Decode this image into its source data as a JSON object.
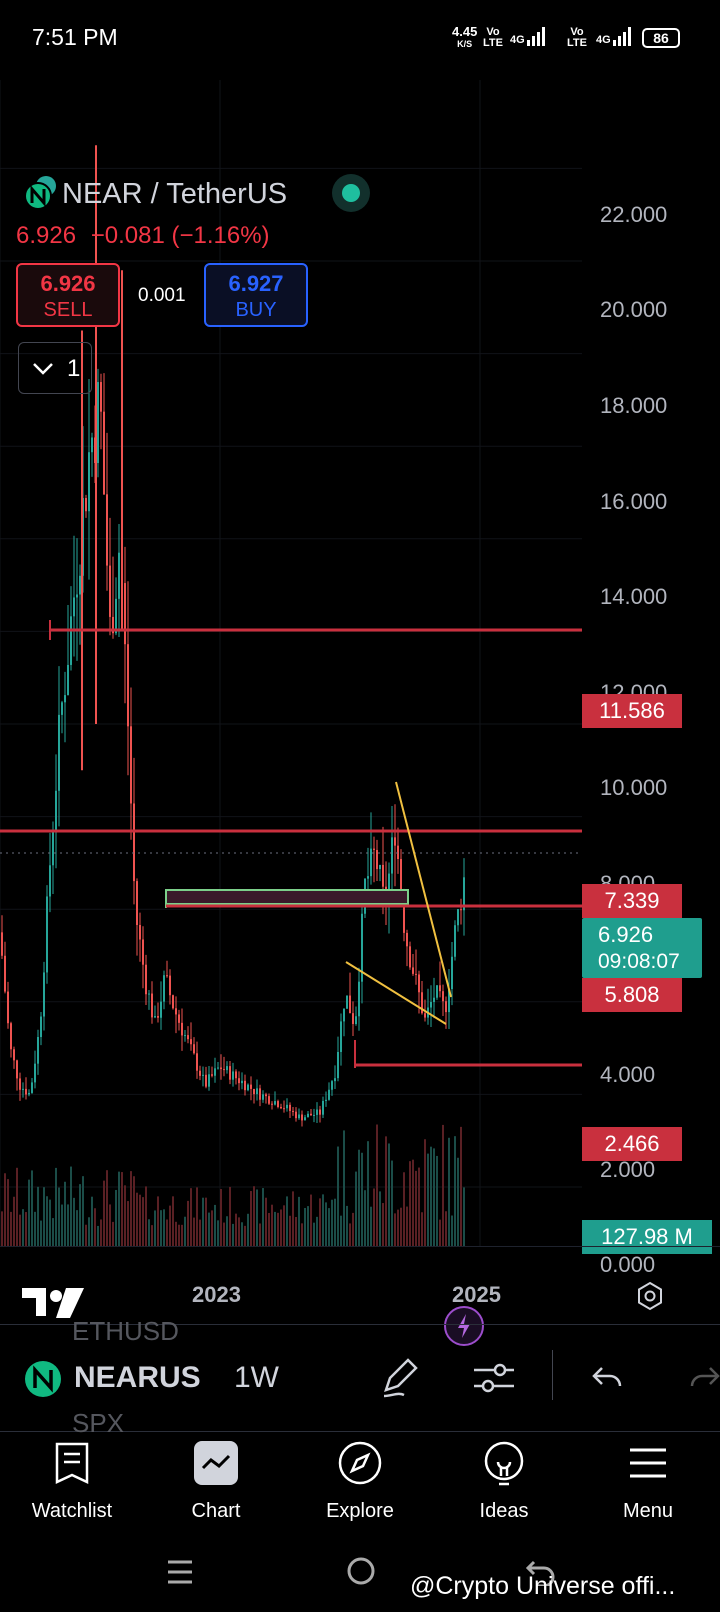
{
  "status_bar": {
    "time": "7:51 PM",
    "net_speed": "4.45",
    "net_speed_unit": "K/S",
    "sim1_label": "Vo LTE",
    "sim1_type": "4G",
    "sim2_label": "Vo LTE",
    "sim2_type": "4G",
    "battery": "86"
  },
  "chart": {
    "symbol_title": "NEAR / TetherUS",
    "price": "6.926",
    "change": "−0.081",
    "change_pct": "(−1.16%)",
    "sell_price": "6.926",
    "sell_label": "SELL",
    "buy_price": "6.927",
    "buy_label": "BUY",
    "spread": "0.001",
    "interval_count": "1",
    "y_axis_labels": [
      "22.000",
      "20.000",
      "18.000",
      "16.000",
      "14.000",
      "12.000",
      "10.000",
      "8.000",
      "4.000",
      "2.000",
      "0.000"
    ],
    "x_axis_labels": [
      "2023",
      "2025"
    ],
    "price_labels": {
      "level_1": "11.586",
      "level_2": "7.339",
      "current": "6.926",
      "countdown": "09:08:07",
      "level_3": "5.808",
      "level_4": "2.466",
      "volume": "127.98 M"
    },
    "colors": {
      "up": "#26a69a",
      "down": "#ef5350",
      "level": "#c9303e",
      "trend": "#f0c040",
      "box": "#7cd08a"
    }
  },
  "toolbar": {
    "symbol": "NEARUS",
    "interval": "1W",
    "ghost_above": "ETHUSD",
    "ghost_below": "SPX"
  },
  "bottom_nav": {
    "items": [
      {
        "label": "Watchlist",
        "icon": "watchlist-icon"
      },
      {
        "label": "Chart",
        "icon": "chart-icon"
      },
      {
        "label": "Explore",
        "icon": "explore-icon"
      },
      {
        "label": "Ideas",
        "icon": "ideas-icon"
      },
      {
        "label": "Menu",
        "icon": "menu-icon"
      }
    ]
  },
  "watermark": "@Crypto Universe offi..."
}
